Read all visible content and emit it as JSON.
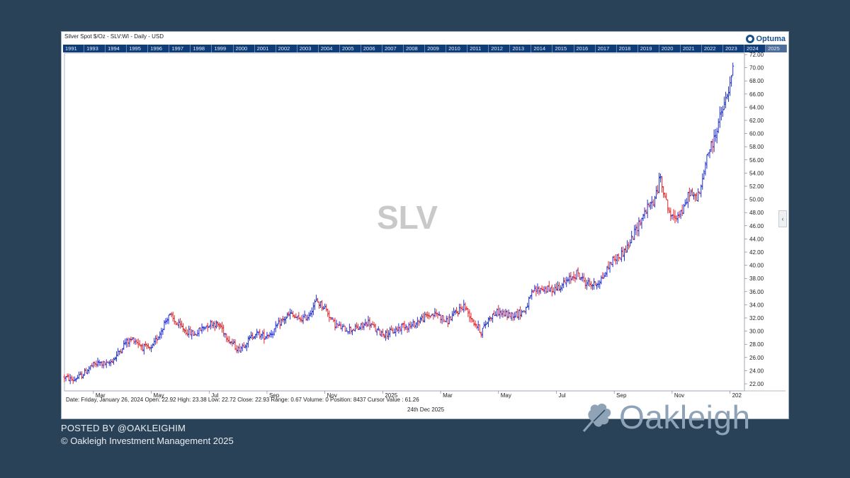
{
  "panel": {
    "title": "Silver Spot $/Oz - SLV:WI - Daily - USD",
    "logo_text": "Optuma",
    "watermark": "SLV",
    "years": [
      "1991",
      "1993",
      "1994",
      "1995",
      "1996",
      "1997",
      "1998",
      "1999",
      "2000",
      "2001",
      "2002",
      "2003",
      "2004",
      "2005",
      "2006",
      "2007",
      "2008",
      "2009",
      "2010",
      "2011",
      "2012",
      "2013",
      "2014",
      "2015",
      "2016",
      "2017",
      "2018",
      "2019",
      "2020",
      "2021",
      "2022",
      "2023",
      "2024",
      "2025"
    ],
    "status": "Date: Friday, January 26, 2024 Open: 22.92 High: 23.38 Low: 22.72 Close: 22.93 Range: 0.67 Volume: 0 Position: 8437 Cursor Value : 61.26",
    "date_stamp": "24th Dec 2025",
    "side_arrow": "‹"
  },
  "footer": {
    "posted_by": "POSTED BY @OAKLEIGHIM",
    "copyright": "© Oakleigh Investment Management 2025",
    "brand": "Oakleigh"
  },
  "colors": {
    "background": "#2a4257",
    "up": "#1f2fd6",
    "down": "#e0262b",
    "year_bar": "#0f3d7a"
  },
  "chart_data": {
    "type": "ohlc",
    "title": "Silver Spot $/Oz - SLV:WI - Daily - USD",
    "xlabel": "",
    "ylabel": "",
    "ylim": [
      22,
      72
    ],
    "y_ticks": [
      "72.00",
      "70.00",
      "68.00",
      "66.00",
      "64.00",
      "62.00",
      "60.00",
      "58.00",
      "56.00",
      "54.00",
      "52.00",
      "50.00",
      "48.00",
      "46.00",
      "44.00",
      "42.00",
      "40.00",
      "38.00",
      "36.00",
      "34.00",
      "32.00",
      "30.00",
      "28.00",
      "26.00",
      "24.00",
      "22.00"
    ],
    "x_ticks": [
      "Mar",
      "May",
      "Jul",
      "Sep",
      "Nov",
      "2025",
      "Mar",
      "May",
      "Jul",
      "Sep",
      "Nov",
      "202"
    ],
    "x_ticks_month_index": [
      1,
      3,
      5,
      7,
      9,
      11,
      13,
      15,
      17,
      19,
      21,
      23
    ],
    "x_range_months": [
      0,
      23.5
    ],
    "points": [
      [
        0.0,
        23.0
      ],
      [
        0.3,
        22.6
      ],
      [
        0.6,
        23.3
      ],
      [
        0.9,
        24.6
      ],
      [
        1.2,
        25.2
      ],
      [
        1.5,
        24.9
      ],
      [
        1.8,
        26.3
      ],
      [
        2.1,
        28.3
      ],
      [
        2.4,
        28.8
      ],
      [
        2.7,
        27.6
      ],
      [
        3.0,
        27.2
      ],
      [
        3.3,
        29.8
      ],
      [
        3.6,
        32.5
      ],
      [
        3.9,
        31.0
      ],
      [
        4.2,
        30.0
      ],
      [
        4.5,
        29.5
      ],
      [
        4.8,
        30.6
      ],
      [
        5.1,
        31.3
      ],
      [
        5.4,
        30.7
      ],
      [
        5.7,
        28.6
      ],
      [
        6.0,
        27.2
      ],
      [
        6.3,
        28.4
      ],
      [
        6.6,
        29.7
      ],
      [
        6.9,
        29.2
      ],
      [
        7.2,
        29.9
      ],
      [
        7.5,
        31.5
      ],
      [
        7.8,
        32.6
      ],
      [
        8.1,
        31.7
      ],
      [
        8.4,
        32.2
      ],
      [
        8.7,
        34.6
      ],
      [
        9.0,
        33.6
      ],
      [
        9.3,
        31.2
      ],
      [
        9.6,
        30.4
      ],
      [
        9.9,
        30.3
      ],
      [
        10.2,
        30.5
      ],
      [
        10.5,
        31.4
      ],
      [
        10.8,
        30.0
      ],
      [
        11.1,
        29.6
      ],
      [
        11.4,
        30.0
      ],
      [
        11.7,
        30.9
      ],
      [
        12.0,
        30.8
      ],
      [
        12.3,
        31.8
      ],
      [
        12.6,
        32.4
      ],
      [
        12.9,
        32.6
      ],
      [
        13.2,
        31.4
      ],
      [
        13.5,
        32.7
      ],
      [
        13.8,
        33.9
      ],
      [
        14.1,
        31.7
      ],
      [
        14.4,
        29.9
      ],
      [
        14.7,
        32.2
      ],
      [
        15.0,
        32.9
      ],
      [
        15.3,
        32.4
      ],
      [
        15.6,
        32.6
      ],
      [
        15.9,
        33.1
      ],
      [
        16.2,
        36.0
      ],
      [
        16.5,
        36.5
      ],
      [
        16.8,
        36.2
      ],
      [
        17.1,
        36.8
      ],
      [
        17.4,
        37.6
      ],
      [
        17.7,
        38.8
      ],
      [
        18.0,
        37.4
      ],
      [
        18.3,
        37.0
      ],
      [
        18.6,
        38.1
      ],
      [
        18.9,
        40.6
      ],
      [
        19.2,
        41.5
      ],
      [
        19.5,
        43.0
      ],
      [
        19.8,
        45.9
      ],
      [
        20.1,
        48.4
      ],
      [
        20.4,
        50.0
      ],
      [
        20.6,
        53.5
      ],
      [
        20.8,
        49.5
      ],
      [
        21.0,
        47.0
      ],
      [
        21.2,
        47.8
      ],
      [
        21.4,
        48.4
      ],
      [
        21.6,
        51.2
      ],
      [
        21.8,
        50.1
      ],
      [
        22.0,
        51.5
      ],
      [
        22.2,
        56.8
      ],
      [
        22.4,
        58.4
      ],
      [
        22.6,
        61.8
      ],
      [
        22.8,
        64.3
      ],
      [
        23.0,
        67.2
      ],
      [
        23.15,
        71.0
      ]
    ]
  }
}
